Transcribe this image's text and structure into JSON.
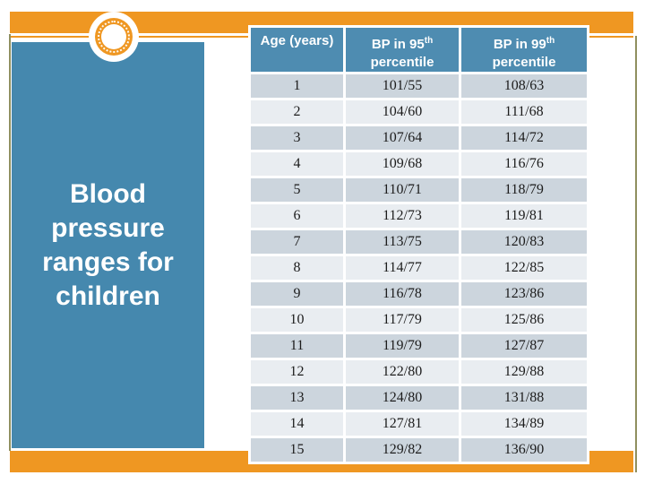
{
  "slide": {
    "title": "Blood pressure ranges for children"
  },
  "colors": {
    "accent_orange": "#EF9722",
    "panel_blue": "#4588AE",
    "header_blue": "#4E8CB1",
    "row_dark": "#CCD5DD",
    "row_light": "#E9EDF1",
    "line_olive": "#8F8F5F",
    "cell_text": "#1C1C1C"
  },
  "table": {
    "columns": [
      {
        "label": "Age (years)"
      },
      {
        "prefix": "BP in 95",
        "sup": "th",
        "suffix": "percentile"
      },
      {
        "prefix": "BP in 99",
        "sup": "th",
        "suffix": "percentile"
      }
    ],
    "rows": [
      {
        "age": "1",
        "p95": "101/55",
        "p99": "108/63"
      },
      {
        "age": "2",
        "p95": "104/60",
        "p99": "111/68"
      },
      {
        "age": "3",
        "p95": "107/64",
        "p99": "114/72"
      },
      {
        "age": "4",
        "p95": "109/68",
        "p99": "116/76"
      },
      {
        "age": "5",
        "p95": "110/71",
        "p99": "118/79"
      },
      {
        "age": "6",
        "p95": "112/73",
        "p99": "119/81"
      },
      {
        "age": "7",
        "p95": "113/75",
        "p99": "120/83"
      },
      {
        "age": "8",
        "p95": "114/77",
        "p99": "122/85"
      },
      {
        "age": "9",
        "p95": "116/78",
        "p99": "123/86"
      },
      {
        "age": "10",
        "p95": "117/79",
        "p99": "125/86"
      },
      {
        "age": "11",
        "p95": "119/79",
        "p99": "127/87"
      },
      {
        "age": "12",
        "p95": "122/80",
        "p99": "129/88"
      },
      {
        "age": "13",
        "p95": "124/80",
        "p99": "131/88"
      },
      {
        "age": "14",
        "p95": "127/81",
        "p99": "134/89"
      },
      {
        "age": "15",
        "p95": "129/82",
        "p99": "136/90"
      }
    ]
  }
}
